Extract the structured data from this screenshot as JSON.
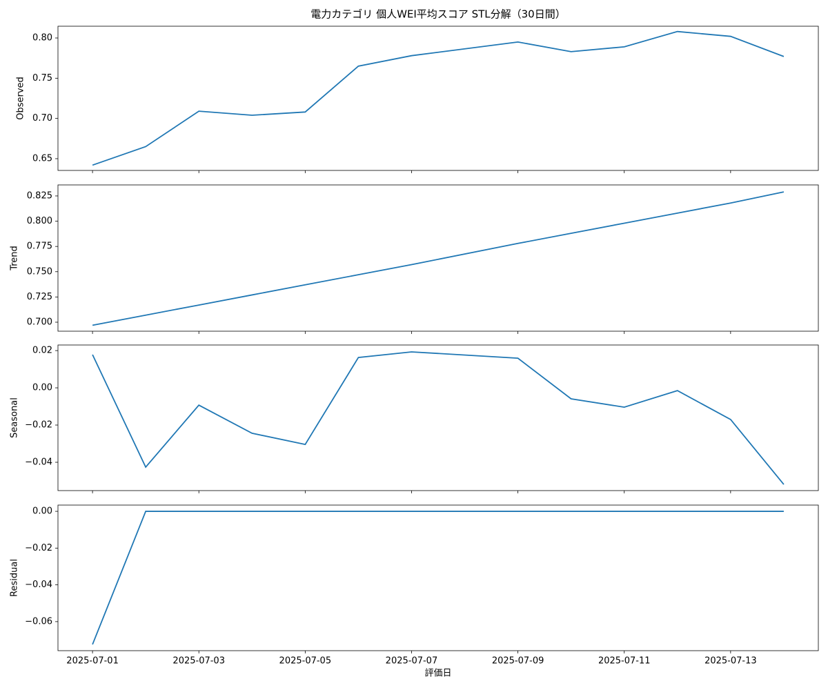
{
  "title": "電力カテゴリ 個人WEI平均スコア STL分解（30日間）",
  "xlabel": "評価日",
  "xticks": [
    "2025-07-01",
    "2025-07-03",
    "2025-07-05",
    "2025-07-07",
    "2025-07-09",
    "2025-07-11",
    "2025-07-13"
  ],
  "chart_data": [
    {
      "type": "line",
      "ylabel": "Observed",
      "color": "#1f77b4",
      "x": [
        "2025-07-01",
        "2025-07-02",
        "2025-07-03",
        "2025-07-04",
        "2025-07-05",
        "2025-07-06",
        "2025-07-07",
        "2025-07-09",
        "2025-07-10",
        "2025-07-11",
        "2025-07-12",
        "2025-07-13",
        "2025-07-14"
      ],
      "values": [
        0.642,
        0.665,
        0.709,
        0.704,
        0.708,
        0.765,
        0.778,
        0.795,
        0.783,
        0.789,
        0.808,
        0.802,
        0.777
      ],
      "ylim": [
        0.6354,
        0.8146
      ],
      "yticks": [
        {
          "value": 0.65,
          "label": "0.65"
        },
        {
          "value": 0.7,
          "label": "0.70"
        },
        {
          "value": 0.75,
          "label": "0.75"
        },
        {
          "value": 0.8,
          "label": "0.80"
        }
      ]
    },
    {
      "type": "line",
      "ylabel": "Trend",
      "color": "#1f77b4",
      "x": [
        "2025-07-01",
        "2025-07-02",
        "2025-07-03",
        "2025-07-04",
        "2025-07-05",
        "2025-07-06",
        "2025-07-07",
        "2025-07-09",
        "2025-07-10",
        "2025-07-11",
        "2025-07-12",
        "2025-07-13",
        "2025-07-14"
      ],
      "values": [
        0.697,
        0.707,
        0.717,
        0.727,
        0.737,
        0.747,
        0.757,
        0.778,
        0.788,
        0.798,
        0.808,
        0.818,
        0.829
      ],
      "ylim": [
        0.6911,
        0.8359
      ],
      "yticks": [
        {
          "value": 0.7,
          "label": "0.700"
        },
        0.725,
        {
          "value": 0.75,
          "label": "0.750"
        },
        0.775,
        {
          "value": 0.8,
          "label": "0.800"
        },
        0.825
      ]
    },
    {
      "type": "line",
      "ylabel": "Seasonal",
      "color": "#1f77b4",
      "x": [
        "2025-07-01",
        "2025-07-02",
        "2025-07-03",
        "2025-07-04",
        "2025-07-05",
        "2025-07-06",
        "2025-07-07",
        "2025-07-09",
        "2025-07-10",
        "2025-07-11",
        "2025-07-12",
        "2025-07-13",
        "2025-07-14"
      ],
      "values": [
        0.0178,
        -0.0426,
        -0.0093,
        -0.0244,
        -0.0304,
        0.0163,
        0.0193,
        0.0159,
        -0.0059,
        -0.0104,
        -0.0015,
        -0.017,
        -0.0519
      ],
      "ylim": [
        -0.0552,
        0.023
      ],
      "yticks": [
        {
          "value": -0.04,
          "label": "−0.04"
        },
        {
          "value": -0.02,
          "label": "−0.02"
        },
        {
          "value": 0,
          "label": "0.00"
        },
        0.02
      ]
    },
    {
      "type": "line",
      "ylabel": "Residual",
      "color": "#1f77b4",
      "x": [
        "2025-07-01",
        "2025-07-02",
        "2025-07-03",
        "2025-07-04",
        "2025-07-05",
        "2025-07-06",
        "2025-07-07",
        "2025-07-09",
        "2025-07-10",
        "2025-07-11",
        "2025-07-12",
        "2025-07-13",
        "2025-07-14"
      ],
      "values": [
        -0.0724,
        0,
        0,
        0,
        0,
        0,
        0,
        0,
        0,
        0,
        0,
        0,
        0
      ],
      "ylim": [
        -0.0758,
        0.0034
      ],
      "yticks": [
        {
          "value": -0.06,
          "label": "−0.06"
        },
        {
          "value": -0.04,
          "label": "−0.04"
        },
        {
          "value": -0.02,
          "label": "−0.02"
        },
        {
          "value": 0,
          "label": "0.00"
        }
      ]
    }
  ]
}
